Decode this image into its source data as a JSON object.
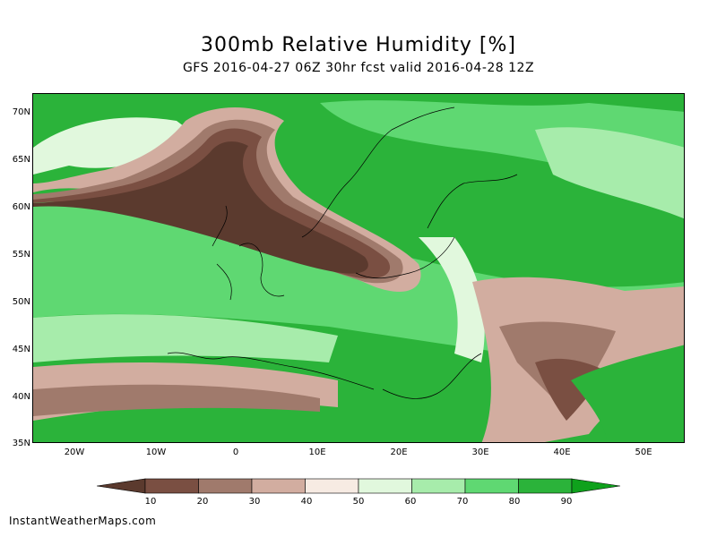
{
  "header": {
    "title": "300mb Relative Humidity [%]",
    "subtitle": "GFS 2016-04-27 06Z 30hr fcst valid 2016-04-28 12Z"
  },
  "map": {
    "lat_labels": [
      "70N",
      "65N",
      "60N",
      "55N",
      "50N",
      "45N",
      "40N",
      "35N"
    ],
    "lon_labels": [
      "20W",
      "10W",
      "0",
      "10E",
      "20E",
      "30E",
      "40E",
      "50E"
    ],
    "lat_range": [
      35,
      72
    ],
    "lon_range": [
      -25,
      55
    ]
  },
  "legend": {
    "values": [
      "10",
      "20",
      "30",
      "40",
      "50",
      "60",
      "70",
      "80",
      "90"
    ],
    "colors": [
      "#5b3a2e",
      "#7a4f42",
      "#a07a6c",
      "#d2ada0",
      "#f7ebe3",
      "#e1f8dd",
      "#a7ecab",
      "#5fd872",
      "#2bb33a",
      "#0fa11c"
    ]
  },
  "footer": {
    "credit": "InstantWeatherMaps.com"
  }
}
